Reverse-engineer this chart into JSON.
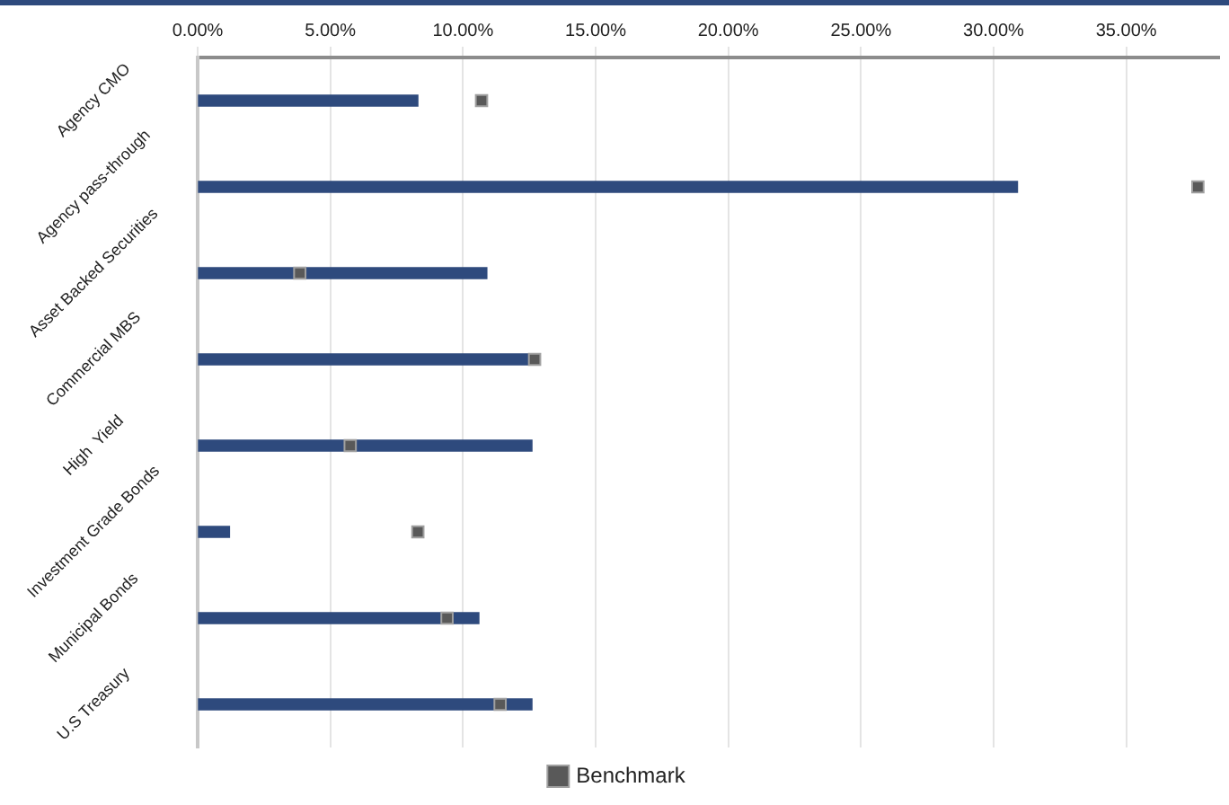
{
  "chart_data": {
    "type": "bar",
    "orientation": "horizontal",
    "categories": [
      "Agency CMO",
      "Agency pass-through",
      "Asset Backed Securities",
      "Commercial MBS",
      "High  Yield",
      "Investment Grade Bonds",
      "Municipal Bonds",
      "U.S Treasury"
    ],
    "series": [
      {
        "color": "#2e4a7d",
        "values": [
          8.3,
          30.9,
          10.9,
          12.6,
          12.6,
          1.2,
          10.6,
          12.6
        ]
      },
      {
        "name": "Benchmark",
        "type": "scatter",
        "marker": "square",
        "color": "#595959",
        "x": [
          "Agency CMO",
          "Agency pass-through",
          "Asset Backed Securities",
          "Commercial MBS",
          "High  Yield",
          "Investment Grade Bonds",
          "Municipal Bonds",
          "U.S Treasury"
        ],
        "values": [
          10.7,
          37.7,
          3.85,
          12.7,
          5.75,
          8.3,
          9.4,
          11.4
        ]
      }
    ],
    "xlim": [
      0,
      38.5
    ],
    "xticks": [
      {
        "value": 0,
        "label": "0.00%"
      },
      {
        "value": 5,
        "label": "5.00%"
      },
      {
        "value": 10,
        "label": "10.00%"
      },
      {
        "value": 15,
        "label": "15.00%"
      },
      {
        "value": 20,
        "label": "20.00%"
      },
      {
        "value": 25,
        "label": "25.00%"
      },
      {
        "value": 30,
        "label": "30.00%"
      },
      {
        "value": 35,
        "label": "35.00%"
      }
    ],
    "grid": "x",
    "legend": "bottom"
  }
}
